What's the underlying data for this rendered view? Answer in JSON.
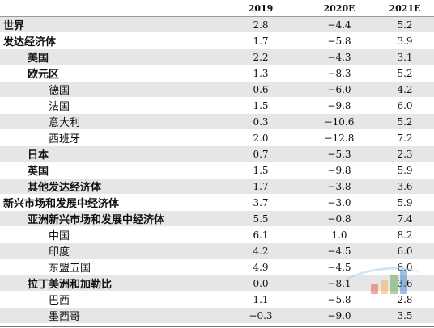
{
  "columns": [
    "",
    "2019",
    "2020E",
    "2021E"
  ],
  "rows": [
    {
      "label": "世界",
      "level": 0,
      "bold": true,
      "shaded": true,
      "v2019": "2.8",
      "v2020": "−4.4",
      "v2021": "5.2"
    },
    {
      "label": "发达经济体",
      "level": 0,
      "bold": true,
      "shaded": false,
      "v2019": "1.7",
      "v2020": "−5.8",
      "v2021": "3.9"
    },
    {
      "label": "美国",
      "level": 1,
      "bold": true,
      "shaded": true,
      "v2019": "2.2",
      "v2020": "−4.3",
      "v2021": "3.1"
    },
    {
      "label": "欧元区",
      "level": 1,
      "bold": true,
      "shaded": false,
      "v2019": "1.3",
      "v2020": "−8.3",
      "v2021": "5.2"
    },
    {
      "label": "德国",
      "level": 2,
      "bold": false,
      "shaded": true,
      "v2019": "0.6",
      "v2020": "−6.0",
      "v2021": "4.2"
    },
    {
      "label": "法国",
      "level": 2,
      "bold": false,
      "shaded": false,
      "v2019": "1.5",
      "v2020": "−9.8",
      "v2021": "6.0"
    },
    {
      "label": "意大利",
      "level": 2,
      "bold": false,
      "shaded": true,
      "v2019": "0.3",
      "v2020": "−10.6",
      "v2021": "5.2"
    },
    {
      "label": "西班牙",
      "level": 2,
      "bold": false,
      "shaded": false,
      "v2019": "2.0",
      "v2020": "−12.8",
      "v2021": "7.2"
    },
    {
      "label": "日本",
      "level": 1,
      "bold": true,
      "shaded": true,
      "v2019": "0.7",
      "v2020": "−5.3",
      "v2021": "2.3"
    },
    {
      "label": "英国",
      "level": 1,
      "bold": true,
      "shaded": false,
      "v2019": "1.5",
      "v2020": "−9.8",
      "v2021": "5.9"
    },
    {
      "label": "其他发达经济体",
      "level": 1,
      "bold": true,
      "shaded": true,
      "v2019": "1.7",
      "v2020": "−3.8",
      "v2021": "3.6"
    },
    {
      "label": "新兴市场和发展中经济体",
      "level": 0,
      "bold": true,
      "shaded": false,
      "v2019": "3.7",
      "v2020": "−3.0",
      "v2021": "5.9"
    },
    {
      "label": "亚洲新兴市场和发展中经济体",
      "level": 1,
      "bold": true,
      "shaded": true,
      "v2019": "5.5",
      "v2020": "−0.8",
      "v2021": "7.4"
    },
    {
      "label": "中国",
      "level": 2,
      "bold": false,
      "shaded": false,
      "v2019": "6.1",
      "v2020": "1.0",
      "v2021": "8.2"
    },
    {
      "label": "印度",
      "level": 2,
      "bold": false,
      "shaded": true,
      "v2019": "4.2",
      "v2020": "−4.5",
      "v2021": "6.0"
    },
    {
      "label": "东盟五国",
      "level": 2,
      "bold": false,
      "shaded": false,
      "v2019": "4.9",
      "v2020": "−4.5",
      "v2021": "6.0"
    },
    {
      "label": "拉丁美洲和加勒比",
      "level": 1,
      "bold": true,
      "shaded": true,
      "v2019": "0.0",
      "v2020": "−8.1",
      "v2021": "3.6"
    },
    {
      "label": "巴西",
      "level": 2,
      "bold": false,
      "shaded": false,
      "v2019": "1.1",
      "v2020": "−5.8",
      "v2021": "2.8"
    },
    {
      "label": "墨西哥",
      "level": 2,
      "bold": false,
      "shaded": true,
      "v2019": "−0.3",
      "v2020": "−9.0",
      "v2021": "3.5"
    }
  ],
  "watermark_colors": [
    "#e8462b",
    "#f2a93b",
    "#4a9d3f",
    "#2f77c4"
  ],
  "watermark_icon": "chart-logo-icon"
}
